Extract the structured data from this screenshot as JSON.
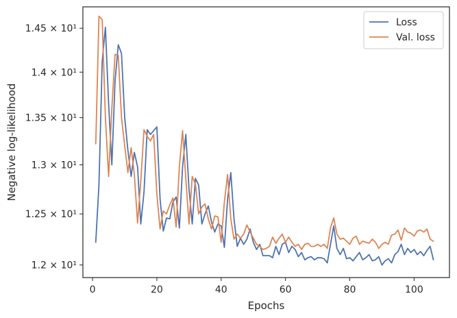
{
  "chart_data": {
    "type": "line",
    "xlabel": "Epochs",
    "ylabel": "Negative log-likelihood",
    "xlim": [
      -3,
      111
    ],
    "ylim": [
      11.88,
      14.75
    ],
    "y_scale": "log",
    "grid": false,
    "legend_position": "top-right",
    "x_ticks": [
      0,
      20,
      40,
      60,
      80,
      100
    ],
    "x_tick_labels": [
      "0",
      "20",
      "40",
      "60",
      "80",
      "100"
    ],
    "y_ticks": [
      12.0,
      12.5,
      13.0,
      13.5,
      14.0,
      14.5
    ],
    "y_tick_labels": [
      "1.2 × 10¹",
      "1.25 × 10¹",
      "1.3 × 10¹",
      "1.35 × 10¹",
      "1.4 × 10¹",
      "1.45 × 10¹"
    ],
    "series": [
      {
        "name": "Loss",
        "color": "#4c72b0",
        "x": [
          1,
          2,
          3,
          4,
          5,
          6,
          7,
          8,
          9,
          10,
          11,
          12,
          13,
          14,
          15,
          16,
          17,
          18,
          19,
          20,
          21,
          22,
          23,
          24,
          25,
          26,
          27,
          28,
          29,
          30,
          31,
          32,
          33,
          34,
          35,
          36,
          37,
          38,
          39,
          40,
          41,
          42,
          43,
          44,
          45,
          46,
          47,
          48,
          49,
          50,
          51,
          52,
          53,
          54,
          55,
          56,
          57,
          58,
          59,
          60,
          61,
          62,
          63,
          64,
          65,
          66,
          67,
          68,
          69,
          70,
          71,
          72,
          73,
          74,
          75,
          76,
          77,
          78,
          79,
          80,
          81,
          82,
          83,
          84,
          85,
          86,
          87,
          88,
          89,
          90,
          91,
          92,
          93,
          94,
          95,
          96,
          97,
          98,
          99,
          100,
          101,
          102,
          103,
          104,
          105,
          106
        ],
        "y": [
          12.22,
          12.8,
          14.12,
          14.51,
          13.65,
          13.0,
          13.9,
          14.31,
          14.21,
          13.5,
          13.15,
          12.88,
          13.13,
          12.98,
          12.4,
          12.72,
          13.37,
          13.32,
          13.36,
          13.4,
          12.65,
          12.33,
          12.46,
          12.45,
          12.62,
          12.67,
          12.36,
          12.98,
          13.32,
          12.75,
          12.4,
          12.86,
          12.79,
          12.4,
          12.5,
          12.58,
          12.42,
          12.32,
          12.4,
          12.38,
          12.17,
          12.65,
          12.92,
          12.45,
          12.18,
          12.26,
          12.2,
          12.25,
          12.35,
          12.22,
          12.15,
          12.2,
          12.09,
          12.09,
          12.09,
          12.07,
          12.18,
          12.1,
          12.2,
          12.22,
          12.12,
          12.18,
          12.15,
          12.08,
          12.12,
          12.05,
          12.07,
          12.08,
          12.05,
          12.07,
          12.07,
          12.06,
          12.02,
          12.2,
          12.38,
          12.16,
          12.1,
          12.16,
          12.06,
          12.07,
          12.04,
          12.08,
          12.12,
          12.05,
          12.07,
          12.1,
          12.04,
          12.05,
          12.08,
          12.0,
          12.04,
          12.06,
          12.02,
          12.1,
          12.13,
          12.2,
          12.1,
          12.16,
          12.12,
          12.15,
          12.1,
          12.13,
          12.09,
          12.14,
          12.18,
          12.05
        ]
      },
      {
        "name": "Val. loss",
        "color": "#dd8452",
        "x": [
          1,
          2,
          3,
          4,
          5,
          6,
          7,
          8,
          9,
          10,
          11,
          12,
          13,
          14,
          15,
          16,
          17,
          18,
          19,
          20,
          21,
          22,
          23,
          24,
          25,
          26,
          27,
          28,
          29,
          30,
          31,
          32,
          33,
          34,
          35,
          36,
          37,
          38,
          39,
          40,
          41,
          42,
          43,
          44,
          45,
          46,
          47,
          48,
          49,
          50,
          51,
          52,
          53,
          54,
          55,
          56,
          57,
          58,
          59,
          60,
          61,
          62,
          63,
          64,
          65,
          66,
          67,
          68,
          69,
          70,
          71,
          72,
          73,
          74,
          75,
          76,
          77,
          78,
          79,
          80,
          81,
          82,
          83,
          84,
          85,
          86,
          87,
          88,
          89,
          90,
          91,
          92,
          93,
          94,
          95,
          96,
          97,
          98,
          99,
          100,
          101,
          102,
          103,
          104,
          105,
          106
        ],
        "y": [
          13.22,
          14.64,
          14.6,
          13.5,
          12.88,
          13.6,
          14.2,
          14.19,
          13.5,
          13.2,
          12.92,
          13.18,
          12.9,
          12.41,
          12.83,
          13.37,
          13.3,
          13.25,
          13.32,
          12.7,
          12.35,
          12.53,
          12.5,
          12.59,
          12.66,
          12.37,
          12.98,
          13.36,
          12.86,
          12.4,
          12.88,
          12.8,
          12.5,
          12.57,
          12.6,
          12.45,
          12.35,
          12.48,
          12.47,
          12.22,
          12.62,
          12.9,
          12.45,
          12.25,
          12.3,
          12.26,
          12.3,
          12.39,
          12.32,
          12.26,
          12.2,
          12.18,
          12.15,
          12.16,
          12.18,
          12.27,
          12.21,
          12.26,
          12.3,
          12.22,
          12.27,
          12.22,
          12.18,
          12.2,
          12.15,
          12.2,
          12.21,
          12.18,
          12.18,
          12.2,
          12.18,
          12.2,
          12.16,
          12.36,
          12.46,
          12.3,
          12.25,
          12.26,
          12.23,
          12.2,
          12.26,
          12.28,
          12.2,
          12.23,
          12.22,
          12.21,
          12.25,
          12.22,
          12.16,
          12.2,
          12.22,
          12.2,
          12.29,
          12.3,
          12.34,
          12.24,
          12.36,
          12.32,
          12.31,
          12.28,
          12.33,
          12.34,
          12.32,
          12.35,
          12.25,
          12.23
        ]
      }
    ]
  }
}
